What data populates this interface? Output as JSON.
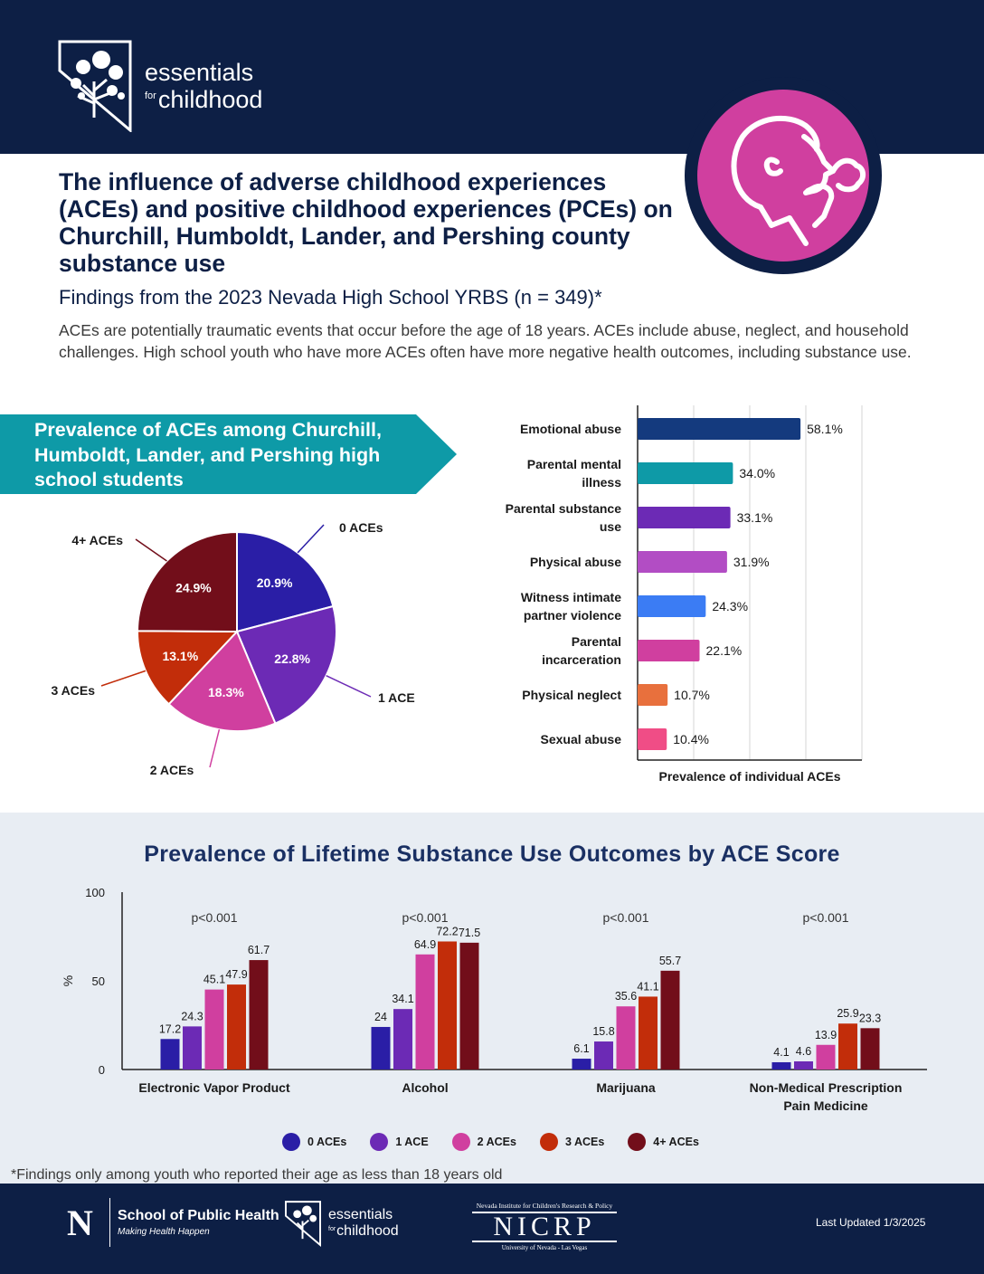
{
  "header": {
    "logo": {
      "line1": "essentials",
      "for_word": "for",
      "line2": "childhood"
    },
    "hero_icon": "child-vaping-icon"
  },
  "title": "The influence of adverse childhood experiences (ACEs) and positive childhood experiences (PCEs) on Churchill, Humboldt, Lander, and Pershing county substance use",
  "subtitle": "Findings from the 2023 Nevada High School YRBS (n = 349)*",
  "intro": "ACEs are potentially traumatic events that occur before the age of 18 years. ACEs include abuse, neglect, and household challenges. High school youth who have more ACEs often have more negative health outcomes, including substance use.",
  "ribbon": {
    "text": "Prevalence of ACEs among Churchill, Humboldt, Lander, and Pershing high school students",
    "color": "#0e9aa7"
  },
  "chart_data": [
    {
      "type": "pie",
      "title": "Prevalence of ACEs among Churchill, Humboldt, Lander, and Pershing high school students",
      "slices": [
        {
          "label": "0 ACEs",
          "value": 20.9,
          "display": "20.9%",
          "color": "#2a1ea6"
        },
        {
          "label": "1 ACE",
          "value": 22.8,
          "display": "22.8%",
          "color": "#6c2ab5"
        },
        {
          "label": "2 ACEs",
          "value": 18.3,
          "display": "18.3%",
          "color": "#d03f9f"
        },
        {
          "label": "3 ACEs",
          "value": 13.1,
          "display": "13.1%",
          "color": "#c22d0a"
        },
        {
          "label": "4+ ACEs",
          "value": 24.9,
          "display": "24.9%",
          "color": "#720e1a"
        }
      ]
    },
    {
      "type": "bar",
      "orientation": "horizontal",
      "xlabel": "Prevalence of individual ACEs",
      "xlim": [
        0,
        80
      ],
      "categories": [
        [
          "Emotional abuse"
        ],
        [
          "Parental mental",
          "illness"
        ],
        [
          "Parental substance",
          "use"
        ],
        [
          "Physical abuse"
        ],
        [
          "Witness intimate",
          "partner violence"
        ],
        [
          "Parental",
          "incarceration"
        ],
        [
          "Physical neglect"
        ],
        [
          "Sexual abuse"
        ]
      ],
      "values": [
        58.1,
        34.0,
        33.1,
        31.9,
        24.3,
        22.1,
        10.7,
        10.4
      ],
      "display": [
        "58.1%",
        "34.0%",
        "33.1%",
        "31.9%",
        "24.3%",
        "22.1%",
        "10.7%",
        "10.4%"
      ],
      "colors": [
        "#143a7e",
        "#0e9aa7",
        "#6c2ab5",
        "#b24dc4",
        "#3b7cf4",
        "#d03f9f",
        "#e8703d",
        "#f04d86"
      ]
    },
    {
      "type": "bar",
      "title": "Prevalence of Lifetime Substance Use Outcomes by ACE Score",
      "ylabel": "%",
      "ylim": [
        0,
        100
      ],
      "yticks": [
        "0",
        "50",
        "100"
      ],
      "yticks_values": [
        0,
        50,
        100
      ],
      "categories": [
        [
          "Electronic Vapor Product"
        ],
        [
          "Alcohol"
        ],
        [
          "Marijuana"
        ],
        [
          "Non-Medical Prescription",
          "Pain Medicine"
        ]
      ],
      "pvalues": [
        "p<0.001",
        "p<0.001",
        "p<0.001",
        "p<0.001"
      ],
      "series": [
        {
          "name": "0 ACEs",
          "color": "#2a1ea6",
          "values": [
            17.2,
            24.0,
            6.1,
            4.1
          ]
        },
        {
          "name": "1 ACE",
          "color": "#6c2ab5",
          "values": [
            24.3,
            34.1,
            15.8,
            4.6
          ]
        },
        {
          "name": "2 ACEs",
          "color": "#d03f9f",
          "values": [
            45.1,
            64.9,
            35.6,
            13.9
          ]
        },
        {
          "name": "3 ACEs",
          "color": "#c22d0a",
          "values": [
            47.9,
            72.2,
            41.1,
            25.9
          ]
        },
        {
          "name": "4+ ACEs",
          "color": "#720e1a",
          "values": [
            61.7,
            71.5,
            55.7,
            23.3
          ]
        }
      ]
    }
  ],
  "footnote": "*Findings only among youth who reported their age as less than 18 years old",
  "footer": {
    "unr_letter": "N",
    "unr_line1": "School of Public Health",
    "unr_line2": "Making Health Happen",
    "efc_line1": "essentials",
    "efc_for": "for",
    "efc_line2": "childhood",
    "nicrp_top": "Nevada Institute for Children's Research & Policy",
    "nicrp_name": "NICRP",
    "nicrp_bottom": "University of Nevada - Las Vegas",
    "updated": "Last Updated 1/3/2025"
  }
}
